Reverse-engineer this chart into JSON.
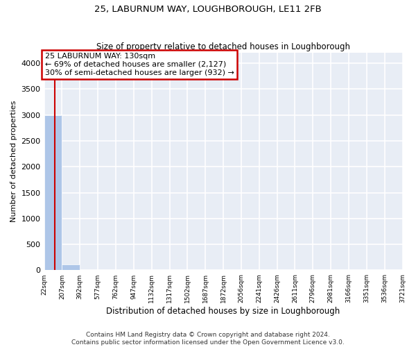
{
  "title1": "25, LABURNUM WAY, LOUGHBOROUGH, LE11 2FB",
  "title2": "Size of property relative to detached houses in Loughborough",
  "xlabel": "Distribution of detached houses by size in Loughborough",
  "ylabel": "Number of detached properties",
  "footer": "Contains HM Land Registry data © Crown copyright and database right 2024.\nContains public sector information licensed under the Open Government Licence v3.0.",
  "bin_labels": [
    "22sqm",
    "207sqm",
    "392sqm",
    "577sqm",
    "762sqm",
    "947sqm",
    "1132sqm",
    "1317sqm",
    "1502sqm",
    "1687sqm",
    "1872sqm",
    "2056sqm",
    "2241sqm",
    "2426sqm",
    "2611sqm",
    "2796sqm",
    "2981sqm",
    "3166sqm",
    "3351sqm",
    "3536sqm",
    "3721sqm"
  ],
  "bar_heights": [
    3000,
    110,
    0,
    0,
    0,
    0,
    0,
    0,
    0,
    0,
    0,
    0,
    0,
    0,
    0,
    0,
    0,
    0,
    0,
    0
  ],
  "bar_color": "#aec6e8",
  "ylim": [
    0,
    4200
  ],
  "yticks": [
    0,
    500,
    1000,
    1500,
    2000,
    2500,
    3000,
    3500,
    4000
  ],
  "bin_edges": [
    22,
    207,
    392,
    577,
    762,
    947,
    1132,
    1317,
    1502,
    1687,
    1872,
    2056,
    2241,
    2426,
    2611,
    2796,
    2981,
    3166,
    3351,
    3536,
    3721
  ],
  "property_size_sqm": 130,
  "annotation_line1": "25 LABURNUM WAY: 130sqm",
  "annotation_line2": "← 69% of detached houses are smaller (2,127)",
  "annotation_line3": "30% of semi-detached houses are larger (932) →",
  "vline_color": "#cc0000",
  "annotation_box_edgecolor": "#cc0000",
  "background_color": "#e8edf5",
  "grid_color": "#ffffff",
  "title1_fontsize": 9.5,
  "title2_fontsize": 8.5,
  "ylabel_fontsize": 8,
  "xlabel_fontsize": 8.5,
  "footer_fontsize": 6.5,
  "annotation_fontsize": 8.0,
  "ytick_fontsize": 8,
  "xtick_fontsize": 6.5
}
